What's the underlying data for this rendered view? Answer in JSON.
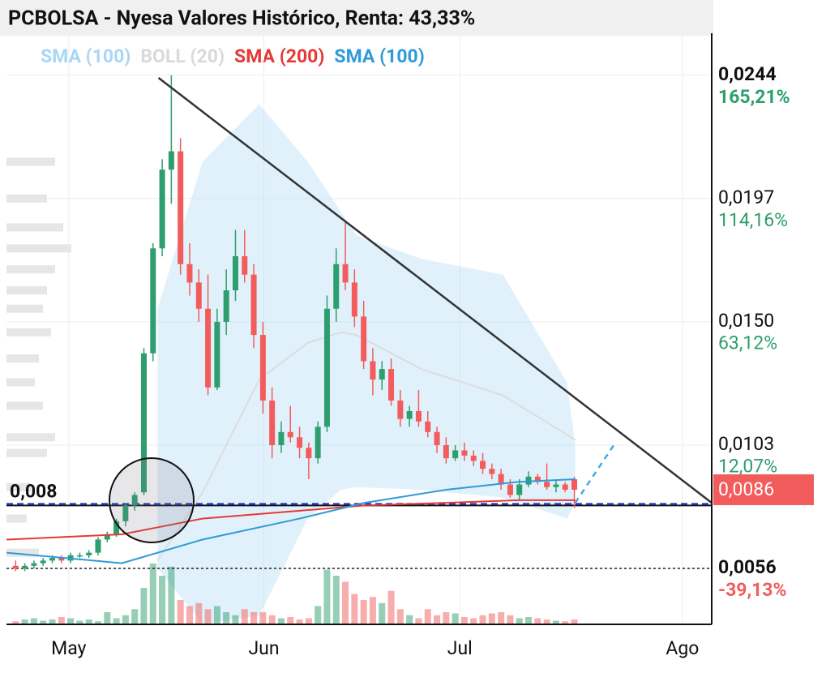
{
  "chart_data": {
    "type": "candlestick",
    "title": "PCBOLSA - Nyesa Valores Histórico, Renta: 43,33%",
    "legend": [
      {
        "name": "SMA (100)",
        "color": "#a9d6f3"
      },
      {
        "name": "BOLL (20)",
        "color": "#d9d9d9"
      },
      {
        "name": "SMA (200)",
        "color": "#e53935"
      },
      {
        "name": "SMA (100)",
        "color": "#2f9ad8"
      }
    ],
    "xlim": [
      0,
      77
    ],
    "xticks": [
      {
        "value": 6.8,
        "label": "May"
      },
      {
        "value": 28.1,
        "label": "Jun"
      },
      {
        "value": 49.5,
        "label": "Jul"
      },
      {
        "value": 73.8,
        "label": "Ago"
      }
    ],
    "ylim": [
      0.0035,
      0.026
    ],
    "yticks": [
      {
        "value": 0.0244,
        "label": "0,0244"
      },
      {
        "value": 0.0197,
        "label": "0,0197"
      },
      {
        "value": 0.015,
        "label": "0,0150"
      },
      {
        "value": 0.0103,
        "label": "0,0103"
      },
      {
        "value": 0.0056,
        "label": "0,0056"
      }
    ],
    "y2lim": [
      -61.96,
      182.6
    ],
    "y2ticks": [
      {
        "value": 165.21,
        "label": "165,21%"
      },
      {
        "value": 114.16,
        "label": "114,16%"
      },
      {
        "value": 63.12,
        "label": "63,12%"
      },
      {
        "value": 12.07,
        "label": "12,07%"
      },
      {
        "value": -39.13,
        "label": "-39,13%"
      }
    ],
    "x": [
      1,
      2,
      3,
      4,
      5,
      6,
      7,
      8,
      9,
      10,
      11,
      12,
      13,
      14,
      15,
      16,
      17,
      18,
      19,
      20,
      21,
      22,
      23,
      24,
      25,
      26,
      27,
      28,
      29,
      30,
      31,
      32,
      33,
      34,
      35,
      36,
      37,
      38,
      39,
      40,
      41,
      42,
      43,
      44,
      45,
      46,
      47,
      48,
      49,
      50,
      51,
      52,
      53,
      54,
      55,
      56,
      57,
      58,
      59,
      60,
      61,
      62
    ],
    "ohlc": [
      [
        0.0057,
        0.0059,
        0.0055,
        0.0056
      ],
      [
        0.0056,
        0.0058,
        0.0055,
        0.0057
      ],
      [
        0.0057,
        0.0059,
        0.0056,
        0.0058
      ],
      [
        0.0058,
        0.006,
        0.0057,
        0.0059
      ],
      [
        0.0059,
        0.0061,
        0.0058,
        0.006
      ],
      [
        0.006,
        0.0061,
        0.0058,
        0.0059
      ],
      [
        0.0059,
        0.0062,
        0.0058,
        0.0061
      ],
      [
        0.0061,
        0.0062,
        0.006,
        0.0061
      ],
      [
        0.0061,
        0.0063,
        0.006,
        0.0062
      ],
      [
        0.0062,
        0.0068,
        0.0061,
        0.0067
      ],
      [
        0.0067,
        0.007,
        0.0066,
        0.0069
      ],
      [
        0.0069,
        0.0075,
        0.0068,
        0.0074
      ],
      [
        0.0074,
        0.0081,
        0.0072,
        0.008
      ],
      [
        0.008,
        0.0085,
        0.0078,
        0.0084
      ],
      [
        0.0085,
        0.014,
        0.0084,
        0.0138
      ],
      [
        0.0138,
        0.018,
        0.0135,
        0.0178
      ],
      [
        0.0178,
        0.0212,
        0.0175,
        0.0208
      ],
      [
        0.0208,
        0.0244,
        0.0195,
        0.0215
      ],
      [
        0.0215,
        0.022,
        0.0168,
        0.0172
      ],
      [
        0.0172,
        0.018,
        0.016,
        0.0165
      ],
      [
        0.0165,
        0.017,
        0.015,
        0.0155
      ],
      [
        0.0155,
        0.0168,
        0.0122,
        0.0125
      ],
      [
        0.0125,
        0.0155,
        0.0124,
        0.015
      ],
      [
        0.015,
        0.017,
        0.0145,
        0.0162
      ],
      [
        0.0162,
        0.0185,
        0.0158,
        0.0175
      ],
      [
        0.0175,
        0.0185,
        0.0165,
        0.0168
      ],
      [
        0.0168,
        0.0172,
        0.014,
        0.0145
      ],
      [
        0.0145,
        0.015,
        0.0115,
        0.012
      ],
      [
        0.012,
        0.0125,
        0.0098,
        0.0103
      ],
      [
        0.0103,
        0.0112,
        0.01,
        0.0108
      ],
      [
        0.0108,
        0.0118,
        0.0104,
        0.0106
      ],
      [
        0.0106,
        0.011,
        0.0098,
        0.0102
      ],
      [
        0.0102,
        0.0104,
        0.009,
        0.0098
      ],
      [
        0.0098,
        0.0112,
        0.0096,
        0.011
      ],
      [
        0.011,
        0.016,
        0.0108,
        0.0155
      ],
      [
        0.0155,
        0.0178,
        0.015,
        0.0172
      ],
      [
        0.0172,
        0.0188,
        0.0162,
        0.0165
      ],
      [
        0.0165,
        0.017,
        0.0148,
        0.0152
      ],
      [
        0.0152,
        0.0158,
        0.0132,
        0.0135
      ],
      [
        0.0135,
        0.014,
        0.0122,
        0.0128
      ],
      [
        0.0128,
        0.0135,
        0.0124,
        0.0132
      ],
      [
        0.0132,
        0.0136,
        0.0118,
        0.012
      ],
      [
        0.012,
        0.0124,
        0.011,
        0.0113
      ],
      [
        0.0113,
        0.0118,
        0.011,
        0.0116
      ],
      [
        0.0116,
        0.0124,
        0.011,
        0.0112
      ],
      [
        0.0112,
        0.0116,
        0.0106,
        0.0108
      ],
      [
        0.0108,
        0.011,
        0.01,
        0.0103
      ],
      [
        0.0103,
        0.0106,
        0.0096,
        0.0098
      ],
      [
        0.0098,
        0.0103,
        0.0097,
        0.0101
      ],
      [
        0.0101,
        0.0104,
        0.0097,
        0.0099
      ],
      [
        0.0099,
        0.0101,
        0.0095,
        0.0097
      ],
      [
        0.0097,
        0.01,
        0.0092,
        0.0094
      ],
      [
        0.0094,
        0.0096,
        0.009,
        0.0092
      ],
      [
        0.0092,
        0.0094,
        0.0086,
        0.0088
      ],
      [
        0.0088,
        0.009,
        0.0083,
        0.0084
      ],
      [
        0.0084,
        0.009,
        0.0082,
        0.0088
      ],
      [
        0.0088,
        0.0093,
        0.0087,
        0.0091
      ],
      [
        0.0091,
        0.0092,
        0.0088,
        0.0089
      ],
      [
        0.0089,
        0.0096,
        0.0086,
        0.0087
      ],
      [
        0.0087,
        0.009,
        0.0085,
        0.0088
      ],
      [
        0.0088,
        0.0089,
        0.0085,
        0.0086
      ],
      [
        0.009,
        0.0091,
        0.0079,
        0.0086
      ]
    ],
    "up_color": "#2e9e6e",
    "down_color": "#f25c5c",
    "volume": [
      5,
      8,
      10,
      6,
      8,
      12,
      10,
      6,
      8,
      5,
      20,
      10,
      15,
      25,
      60,
      100,
      80,
      95,
      40,
      30,
      35,
      25,
      30,
      20,
      15,
      25,
      20,
      20,
      15,
      10,
      12,
      8,
      10,
      30,
      90,
      80,
      70,
      50,
      40,
      45,
      35,
      55,
      25,
      15,
      10,
      25,
      15,
      20,
      18,
      12,
      10,
      15,
      18,
      20,
      15,
      10,
      12,
      10,
      8,
      6,
      5,
      8
    ],
    "profile": {
      "prices": [
        0.0211,
        0.0197,
        0.0186,
        0.0178,
        0.017,
        0.0162,
        0.0155,
        0.0146,
        0.0136,
        0.0127,
        0.0118,
        0.0106,
        0.01,
        0.0087,
        0.0075,
        0.0062
      ],
      "widths": [
        60,
        50,
        70,
        80,
        60,
        50,
        45,
        55,
        40,
        35,
        45,
        60,
        50,
        30,
        25,
        40
      ]
    },
    "bands": {
      "x": [
        16.5,
        21.4,
        27.6,
        32.9,
        36.5,
        38.2,
        45.3,
        54.2,
        61.2,
        62.1
      ],
      "upper": [
        0.0155,
        0.0211,
        0.0233,
        0.0211,
        0.0192,
        0.0183,
        0.0174,
        0.0168,
        0.0127,
        0.0103
      ],
      "lower": [
        0.0056,
        0.0035,
        0.0038,
        0.0075,
        0.0086,
        0.0087,
        0.0086,
        0.0083,
        0.0075,
        0.0081
      ],
      "mid": [
        0.0059,
        0.0085,
        0.0128,
        0.0142,
        0.0146,
        0.0145,
        0.0132,
        0.0122,
        0.0107,
        0.0105
      ]
    },
    "lines": {
      "x": [
        0,
        12.6,
        21.4,
        32,
        39.1,
        48,
        55.9,
        62.1
      ],
      "series": [
        {
          "name": "SMA (200)",
          "color": "#e53935",
          "values": [
            0.0067,
            0.0069,
            0.0075,
            0.0078,
            0.008,
            0.0081,
            0.0082,
            0.0082
          ]
        },
        {
          "name": "SMA (100)",
          "color": "#2f9ad8",
          "values": [
            0.0062,
            0.0058,
            0.0067,
            0.0075,
            0.0081,
            0.0086,
            0.0089,
            0.009
          ]
        }
      ]
    },
    "trendline": {
      "x": [
        16.6,
        77
      ],
      "values": [
        0.0243,
        0.0081
      ]
    },
    "projection": {
      "x": [
        62.1,
        66.5
      ],
      "values": [
        0.0081,
        0.0104
      ]
    },
    "support": {
      "value": 0.008,
      "label": "0,008"
    },
    "reference_line": 0.0056,
    "current_price": {
      "value": 0.0086,
      "label": "0,0086"
    }
  }
}
